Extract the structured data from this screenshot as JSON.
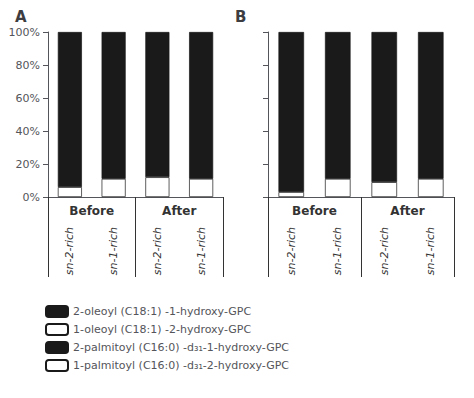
{
  "chart_data": [
    {
      "type": "bar",
      "title": "A",
      "stacked": true,
      "grid": false,
      "categories": [
        "sn-2-rich",
        "sn-1-rich",
        "sn-2-rich",
        "sn-1-rich"
      ],
      "groups": [
        "Before",
        "After"
      ],
      "series": [
        {
          "name": "1-oleoyl (C18:1) -2-hydroxy-GPC",
          "color": "#ffffff",
          "values": [
            6,
            11,
            12,
            11
          ]
        },
        {
          "name": "2-oleoyl (C18:1) -1-hydroxy-GPC",
          "color": "#1a1a1a",
          "values": [
            94,
            89,
            88,
            89
          ]
        }
      ],
      "ylim": [
        0,
        100
      ],
      "yticks": [
        {
          "value": 0,
          "label": "0%"
        },
        {
          "value": 20,
          "label": "20%"
        },
        {
          "value": 40,
          "label": "40%"
        },
        {
          "value": 60,
          "label": "60%"
        },
        {
          "value": 80,
          "label": "80%"
        },
        {
          "value": 100,
          "label": "100%"
        }
      ]
    },
    {
      "type": "bar",
      "title": "B",
      "stacked": true,
      "grid": false,
      "tick_labels": "x",
      "categories": [
        "sn-2-rich",
        "sn-1-rich",
        "sn-2-rich",
        "sn-1-rich"
      ],
      "groups": [
        "Before",
        "After"
      ],
      "series": [
        {
          "name": "1-palmitoyl (C16:0) -d₃₁-2-hydroxy-GPC",
          "color": "#ffffff",
          "values": [
            3,
            11,
            9,
            11
          ]
        },
        {
          "name": "2-palmitoyl (C16:0) -d₃₁-1-hydroxy-GPC",
          "color": "#1a1a1a",
          "values": [
            97,
            89,
            91,
            89
          ]
        }
      ],
      "ylim": [
        0,
        100
      ],
      "yticks": [
        0,
        20,
        40,
        60,
        80,
        100
      ]
    }
  ]
}
